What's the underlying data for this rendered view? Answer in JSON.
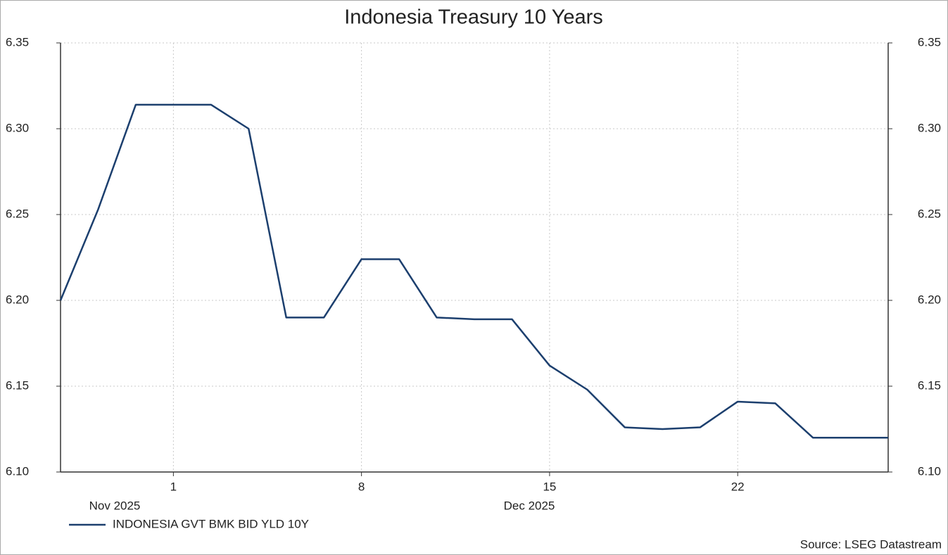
{
  "chart_data": {
    "type": "line",
    "title": "Indonesia Treasury 10 Years",
    "source": "Source: LSEG Datastream",
    "categories": [
      null,
      null,
      null,
      "1",
      null,
      null,
      null,
      null,
      "8",
      null,
      null,
      null,
      null,
      "15",
      null,
      null,
      null,
      null,
      "22",
      null,
      null,
      null,
      null
    ],
    "x_groups": [
      "Nov 2025",
      "Dec 2025"
    ],
    "series": [
      {
        "name": "INDONESIA GVT BMK BID YLD 10Y",
        "color": "#1c3f6e",
        "values": [
          6.2,
          6.253,
          6.314,
          6.314,
          6.314,
          6.3,
          6.19,
          6.19,
          6.224,
          6.224,
          6.19,
          6.189,
          6.189,
          6.162,
          6.148,
          6.126,
          6.125,
          6.126,
          6.141,
          6.14,
          6.12,
          6.12,
          6.12
        ]
      }
    ],
    "ylim": [
      6.1,
      6.35
    ],
    "yticks": [
      {
        "value": 6.1,
        "label": "6.10"
      },
      6.15,
      {
        "value": 6.2,
        "label": "6.20"
      },
      6.25,
      {
        "value": 6.3,
        "label": "6.30"
      },
      6.35
    ],
    "y2lim": [
      6.1,
      6.35
    ],
    "y2ticks": [
      {
        "value": 6.1,
        "label": "6.10"
      },
      6.15,
      {
        "value": 6.2,
        "label": "6.20"
      },
      6.25,
      {
        "value": 6.3,
        "label": "6.30"
      },
      6.35
    ],
    "grid": true
  }
}
